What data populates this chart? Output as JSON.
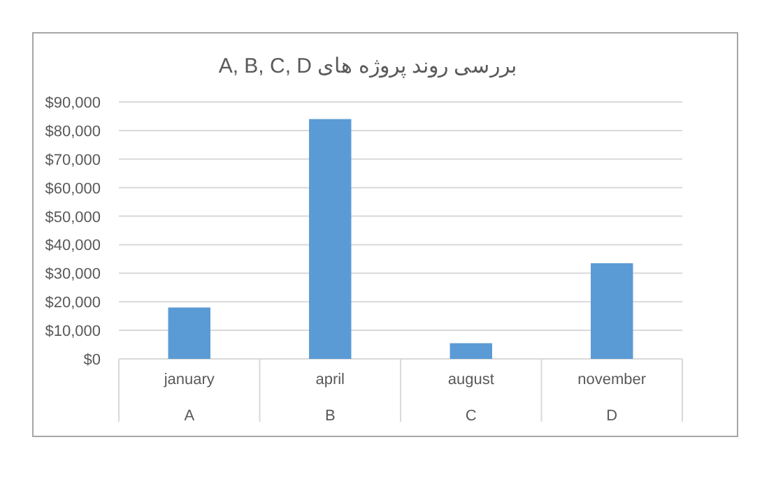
{
  "chart_data": {
    "type": "bar",
    "title": "بررسی روند پروژه های A, B, C, D",
    "categories": [
      "january",
      "april",
      "august",
      "november"
    ],
    "values": [
      18000,
      84000,
      5500,
      33500
    ],
    "color": "#5b9bd5",
    "ylim": [
      0,
      90000
    ],
    "yticks": [
      {
        "value": 0,
        "label": "$0"
      },
      {
        "value": 10000,
        "label": "$10,000"
      },
      {
        "value": 20000,
        "label": "$20,000"
      },
      {
        "value": 30000,
        "label": "$30,000"
      },
      {
        "value": 40000,
        "label": "$40,000"
      },
      {
        "value": 50000,
        "label": "$50,000"
      },
      {
        "value": 60000,
        "label": "$60,000"
      },
      {
        "value": 70000,
        "label": "$70,000"
      },
      {
        "value": 80000,
        "label": "$80,000"
      },
      {
        "value": 90000,
        "label": "$90,000"
      }
    ],
    "grid": "y",
    "annotations": [
      "A",
      "B",
      "C",
      "D"
    ]
  }
}
